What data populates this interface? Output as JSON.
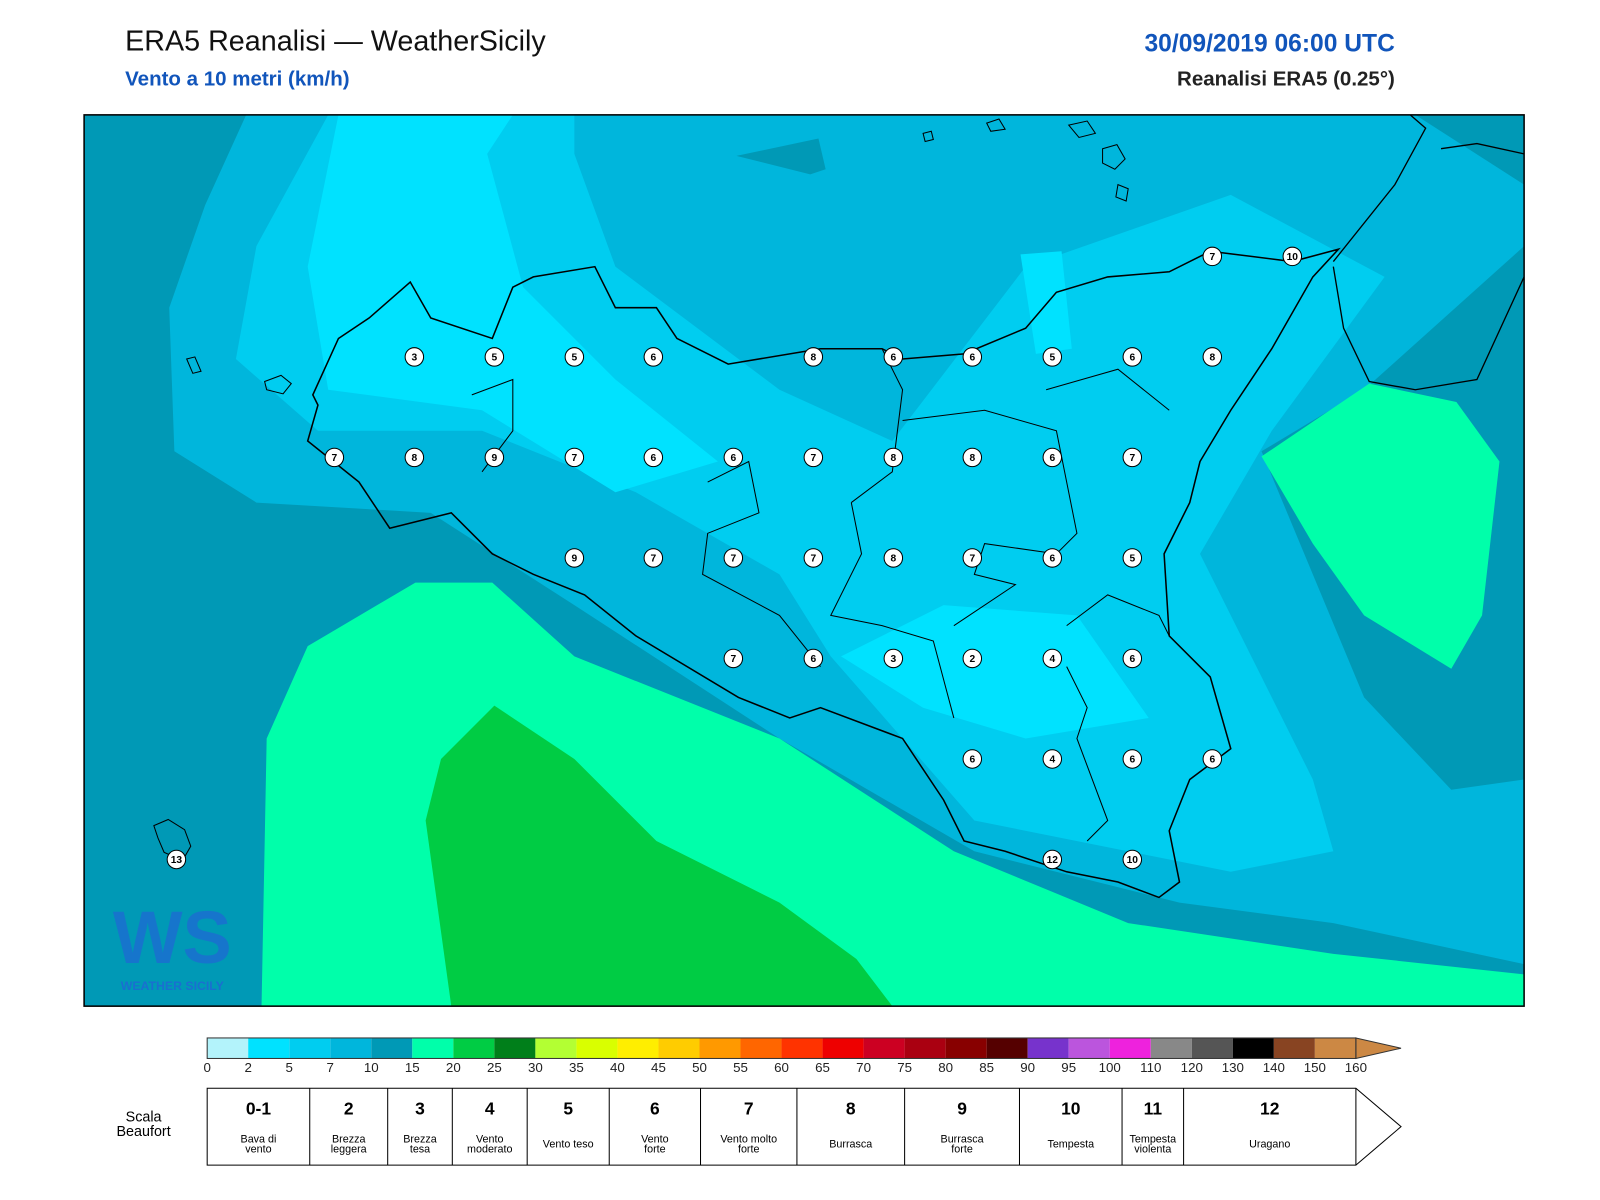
{
  "header": {
    "title": "ERA5 Reanalisi — WeatherSicily",
    "subtitle": "Vento a 10 metri (km/h)",
    "date": "30/09/2019 06:00 UTC",
    "source": "Reanalisi ERA5 (0.25°)"
  },
  "logo": {
    "mark": "WS",
    "name": "WEATHER SICILY"
  },
  "stations": [
    7,
    10,
    3,
    5,
    5,
    6,
    8,
    6,
    6,
    5,
    6,
    8,
    7,
    8,
    9,
    7,
    6,
    6,
    7,
    8,
    8,
    6,
    7,
    9,
    7,
    7,
    7,
    8,
    7,
    6,
    5,
    7,
    6,
    3,
    2,
    4,
    6,
    6,
    4,
    6,
    6,
    12,
    10,
    13
  ],
  "colorbar": {
    "ticks": [
      0,
      2,
      5,
      7,
      10,
      15,
      20,
      25,
      30,
      35,
      40,
      45,
      50,
      55,
      60,
      65,
      70,
      75,
      80,
      85,
      90,
      95,
      100,
      110,
      120,
      130,
      140,
      150,
      160
    ],
    "colors": [
      "#b3f3fb",
      "#00e2ff",
      "#00cdf0",
      "#00b6dc",
      "#0099b6",
      "#00ffaa",
      "#00cc44",
      "#007f1a",
      "#b3ff33",
      "#d9ff00",
      "#ffee00",
      "#ffcc00",
      "#ff9900",
      "#ff6600",
      "#ff3300",
      "#ee0000",
      "#cc0022",
      "#aa0011",
      "#880000",
      "#550000",
      "#7733cc",
      "#bb55dd",
      "#ee22dd",
      "#888888",
      "#555555",
      "#000000",
      "#884422",
      "#cc8844"
    ],
    "extend_color": "#cc8844"
  },
  "beaufort": {
    "label": [
      "Scala",
      "Beaufort"
    ],
    "levels": [
      {
        "force": "0-1",
        "name": [
          "Bava di",
          "vento"
        ]
      },
      {
        "force": 2,
        "name": [
          "Brezza",
          "leggera"
        ]
      },
      {
        "force": 3,
        "name": [
          "Brezza",
          "tesa"
        ]
      },
      {
        "force": 4,
        "name": [
          "Vento",
          "moderato"
        ]
      },
      {
        "force": 5,
        "name": [
          "Vento teso"
        ]
      },
      {
        "force": 6,
        "name": [
          "Vento",
          "forte"
        ]
      },
      {
        "force": 7,
        "name": [
          "Vento molto",
          "forte"
        ]
      },
      {
        "force": 8,
        "name": [
          "Burrasca"
        ]
      },
      {
        "force": 9,
        "name": [
          "Burrasca",
          "forte"
        ]
      },
      {
        "force": 10,
        "name": [
          "Tempesta"
        ]
      },
      {
        "force": 11,
        "name": [
          "Tempesta",
          "violenta"
        ]
      },
      {
        "force": 12,
        "name": [
          "Uragano"
        ]
      }
    ]
  }
}
